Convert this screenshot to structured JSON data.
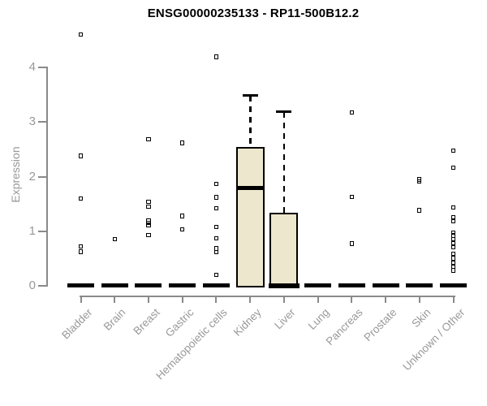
{
  "title": "ENSG00000235133 - RP11-500B12.2",
  "ylabel": "Expression",
  "colors": {
    "box_fill": "#ece7cd",
    "box_border": "#000000",
    "point": "#000000",
    "zero_bar": "#000000",
    "axis": "#8a8a8a",
    "tick_label": "#999999",
    "title": "#000000",
    "background": "#ffffff"
  },
  "chart_data": {
    "type": "boxplot",
    "title": "ENSG00000235133 - RP11-500B12.2",
    "xlabel": "",
    "ylabel": "Expression",
    "ylim": [
      0,
      4.7
    ],
    "yticks": [
      "0",
      "1",
      "2",
      "3",
      "4"
    ],
    "grid": "off",
    "legend": "none",
    "marker": "open-square",
    "categories": [
      "Bladder",
      "Brain",
      "Breast",
      "Gastric",
      "Hematopoietic cells",
      "Kidney",
      "Liver",
      "Lung",
      "Pancreas",
      "Prostate",
      "Skin",
      "Unknown / Other"
    ],
    "series": [
      {
        "name": "Bladder",
        "zero_bar": true,
        "points": [
          4.61,
          2.38,
          1.6,
          0.72,
          0.62
        ]
      },
      {
        "name": "Brain",
        "zero_bar": true,
        "points": [
          0.85
        ]
      },
      {
        "name": "Breast",
        "zero_bar": true,
        "points": [
          2.69,
          1.54,
          1.45,
          1.19,
          1.15,
          1.11,
          0.93
        ]
      },
      {
        "name": "Gastric",
        "zero_bar": true,
        "points": [
          2.62,
          1.28,
          1.03
        ]
      },
      {
        "name": "Hematopoietic cells",
        "zero_bar": true,
        "points": [
          4.2,
          1.87,
          1.62,
          1.42,
          1.08,
          0.87,
          0.68,
          0.61,
          0.2
        ]
      },
      {
        "name": "Kidney",
        "zero_bar": false,
        "points": [],
        "box": {
          "q1": 0,
          "median": 1.79,
          "q3": 2.55,
          "whisker_low": 0,
          "whisker_high": 3.48
        }
      },
      {
        "name": "Liver",
        "zero_bar": false,
        "points": [],
        "box": {
          "q1": 0,
          "median": 0,
          "q3": 1.34,
          "whisker_low": 0,
          "whisker_high": 3.18
        }
      },
      {
        "name": "Lung",
        "zero_bar": true,
        "points": []
      },
      {
        "name": "Pancreas",
        "zero_bar": true,
        "points": [
          3.18,
          1.63,
          0.77
        ]
      },
      {
        "name": "Prostate",
        "zero_bar": true,
        "points": []
      },
      {
        "name": "Skin",
        "zero_bar": true,
        "points": [
          1.95,
          1.91,
          1.38
        ]
      },
      {
        "name": "Unknown / Other",
        "zero_bar": true,
        "points": [
          2.48,
          2.16,
          1.43,
          1.25,
          1.19,
          0.97,
          0.92,
          0.85,
          0.78,
          0.7,
          0.58,
          0.5,
          0.42,
          0.35,
          0.28
        ]
      }
    ]
  }
}
